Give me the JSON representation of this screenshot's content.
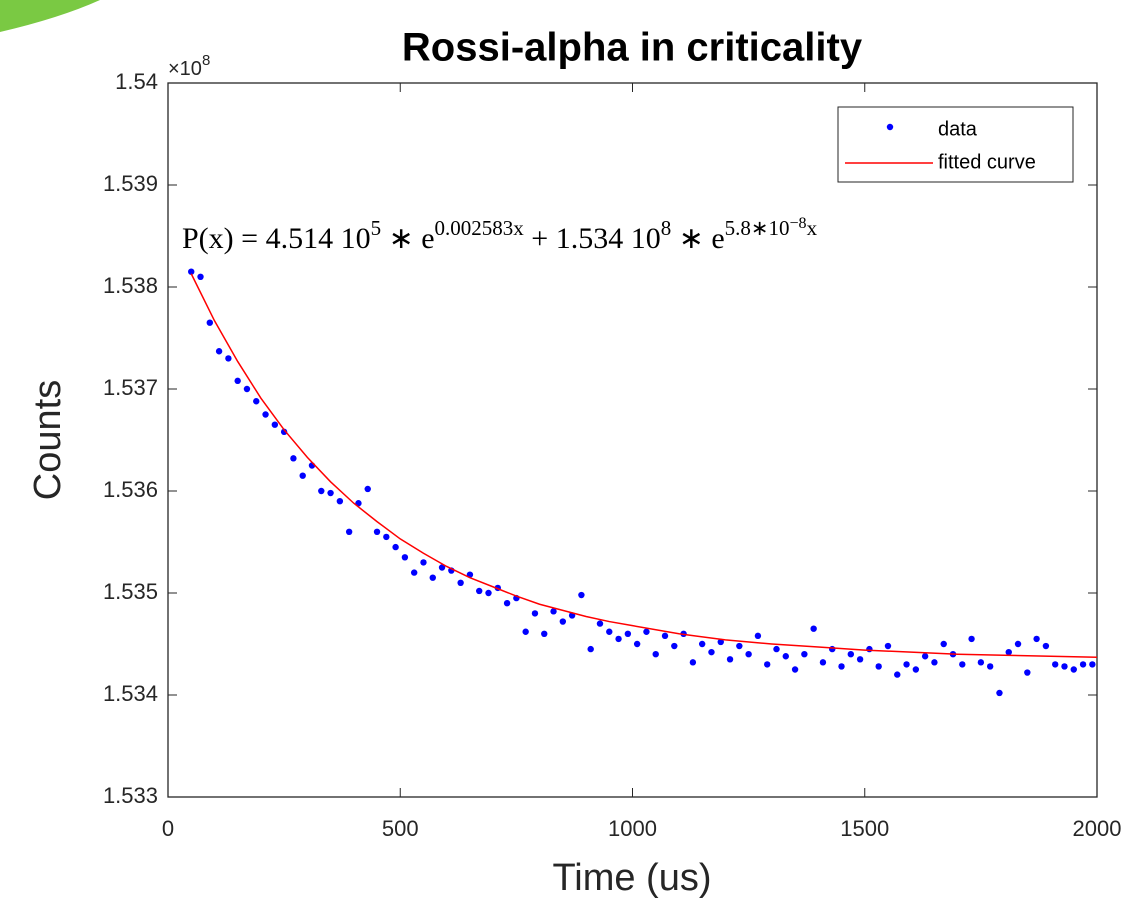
{
  "chart_data": {
    "type": "scatter",
    "title": "Rossi-alpha in criticality",
    "xlabel": "Time (us)",
    "ylabel": "Counts",
    "y_multiplier": {
      "base": "×10",
      "exponent": "8"
    },
    "annotation": [
      {
        "text": "P(x) = "
      },
      {
        "text": "4.514 10"
      },
      {
        "sup": "5"
      },
      {
        "text": " ∗ e"
      },
      {
        "sup": "0.002583x"
      },
      {
        "text": " + 1.534 10"
      },
      {
        "sup": "8"
      },
      {
        "text": " ∗ e"
      },
      {
        "sup": "5.8∗10"
      },
      {
        "supsup": "−8"
      },
      {
        "sup": "x"
      }
    ],
    "xlim": [
      0,
      2000
    ],
    "ylim": [
      1.533,
      1.54
    ],
    "xticks": [
      0,
      500,
      1000,
      1500,
      2000
    ],
    "yticks": [
      1.533,
      1.534,
      1.535,
      1.536,
      1.537,
      1.538,
      1.539,
      1.54
    ],
    "legend": "upper right",
    "series": [
      {
        "name": "data",
        "type": "scatter",
        "color": "#0000ff",
        "x": [
          50,
          70,
          90,
          110,
          130,
          150,
          170,
          190,
          210,
          230,
          250,
          270,
          290,
          310,
          330,
          350,
          370,
          390,
          410,
          430,
          450,
          470,
          490,
          510,
          530,
          550,
          570,
          590,
          610,
          630,
          650,
          670,
          690,
          710,
          730,
          750,
          770,
          790,
          810,
          830,
          850,
          870,
          890,
          910,
          930,
          950,
          970,
          990,
          1010,
          1030,
          1050,
          1070,
          1090,
          1110,
          1130,
          1150,
          1170,
          1190,
          1210,
          1230,
          1250,
          1270,
          1290,
          1310,
          1330,
          1350,
          1370,
          1390,
          1410,
          1430,
          1450,
          1470,
          1490,
          1510,
          1530,
          1550,
          1570,
          1590,
          1610,
          1630,
          1650,
          1670,
          1690,
          1710,
          1730,
          1750,
          1770,
          1790,
          1810,
          1830,
          1850,
          1870,
          1890,
          1910,
          1930,
          1950,
          1970,
          1990
        ],
        "values": [
          1.53815,
          1.5381,
          1.53765,
          1.53737,
          1.5373,
          1.53708,
          1.537,
          1.53688,
          1.53675,
          1.53665,
          1.53658,
          1.53632,
          1.53615,
          1.53625,
          1.536,
          1.53598,
          1.5359,
          1.5356,
          1.53588,
          1.53602,
          1.5356,
          1.53555,
          1.53545,
          1.53535,
          1.5352,
          1.5353,
          1.53515,
          1.53525,
          1.53522,
          1.5351,
          1.53518,
          1.53502,
          1.535,
          1.53505,
          1.5349,
          1.53495,
          1.53462,
          1.5348,
          1.5346,
          1.53482,
          1.53472,
          1.53478,
          1.53498,
          1.53445,
          1.5347,
          1.53462,
          1.53455,
          1.5346,
          1.5345,
          1.53462,
          1.5344,
          1.53458,
          1.53448,
          1.5346,
          1.53432,
          1.5345,
          1.53442,
          1.53452,
          1.53435,
          1.53448,
          1.5344,
          1.53458,
          1.5343,
          1.53445,
          1.53438,
          1.53425,
          1.5344,
          1.53465,
          1.53432,
          1.53445,
          1.53428,
          1.5344,
          1.53435,
          1.53445,
          1.53428,
          1.53448,
          1.5342,
          1.5343,
          1.53425,
          1.53438,
          1.53432,
          1.5345,
          1.5344,
          1.5343,
          1.53455,
          1.53432,
          1.53428,
          1.53402,
          1.53442,
          1.5345,
          1.53422,
          1.53455,
          1.53448,
          1.5343,
          1.53428,
          1.53425,
          1.5343,
          1.5343
        ]
      },
      {
        "name": "fitted curve",
        "type": "line",
        "color": "#ff0000",
        "x": [
          50,
          100,
          150,
          200,
          250,
          300,
          350,
          400,
          450,
          500,
          550,
          600,
          650,
          700,
          750,
          800,
          850,
          900,
          950,
          1000,
          1100,
          1200,
          1300,
          1400,
          1500,
          1600,
          1700,
          1800,
          1900,
          2000
        ],
        "values": [
          1.53813,
          1.53767,
          1.53727,
          1.53691,
          1.5366,
          1.53633,
          1.53609,
          1.53588,
          1.5357,
          1.53553,
          1.53539,
          1.53526,
          1.53515,
          1.53506,
          1.53497,
          1.53489,
          1.53483,
          1.53477,
          1.53472,
          1.53468,
          1.5346,
          1.53454,
          1.5345,
          1.53447,
          1.53444,
          1.53442,
          1.5344,
          1.53439,
          1.53438,
          1.53437
        ]
      }
    ]
  }
}
